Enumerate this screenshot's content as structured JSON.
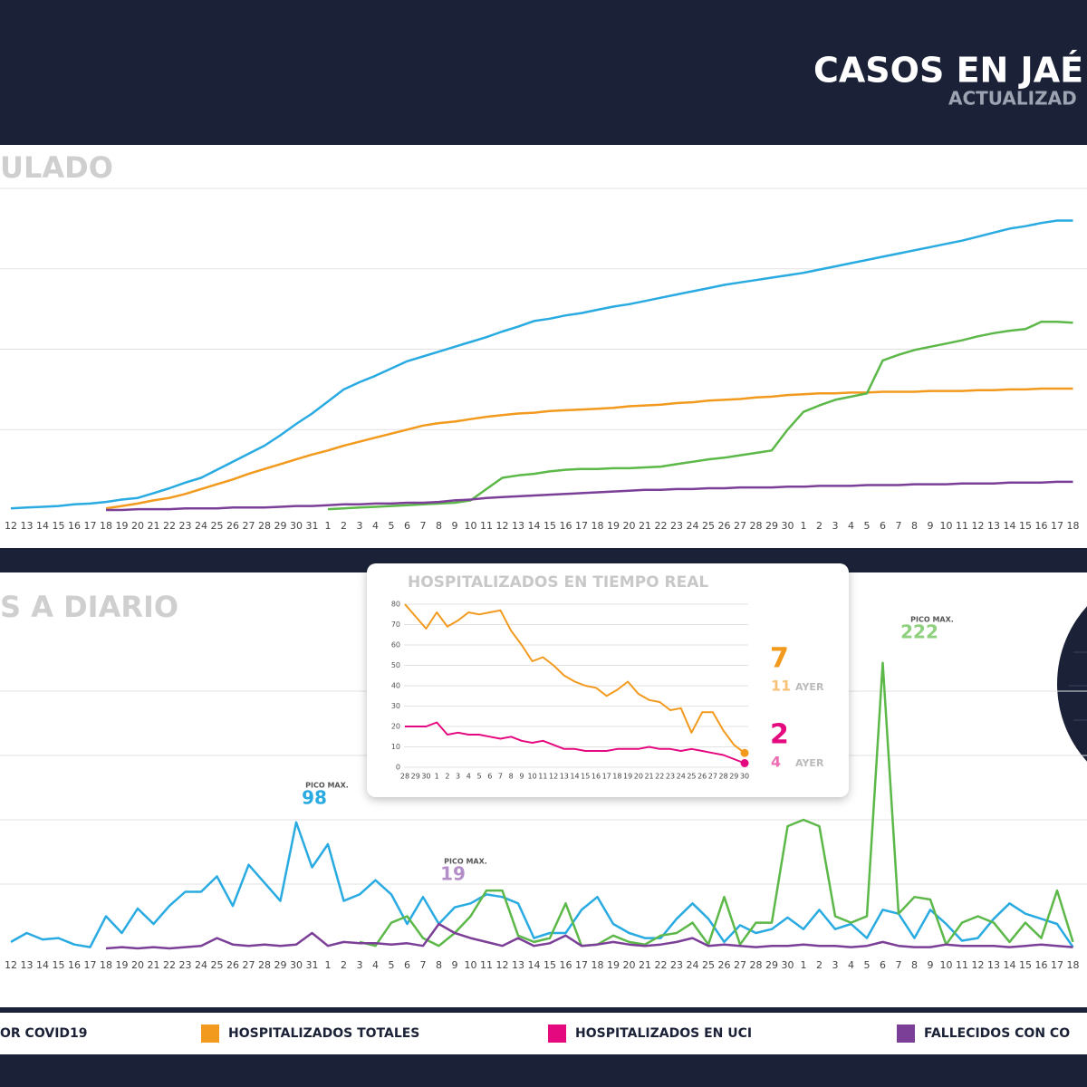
{
  "header": {
    "title": "CASOS EN JAÉ",
    "subtitle": "ACTUALIZAD"
  },
  "legend": [
    {
      "label": "OR COVID19"
    },
    {
      "label": "HOSPITALIZADOS TOTALES",
      "color": "#f29a1d"
    },
    {
      "label": "HOSPITALIZADOS EN UCI",
      "color": "#e5097f"
    },
    {
      "label": "FALLECIDOS CON CO",
      "color": "#7b3f98"
    }
  ],
  "chart_data": [
    {
      "type": "line",
      "title": "ULADO",
      "categories": [
        "12",
        "13",
        "14",
        "15",
        "16",
        "17",
        "18",
        "19",
        "20",
        "21",
        "22",
        "23",
        "24",
        "25",
        "26",
        "27",
        "28",
        "29",
        "30",
        "31",
        "1",
        "2",
        "3",
        "4",
        "5",
        "6",
        "7",
        "8",
        "9",
        "10",
        "11",
        "12",
        "13",
        "14",
        "15",
        "16",
        "17",
        "18",
        "19",
        "20",
        "21",
        "22",
        "23",
        "24",
        "25",
        "26",
        "27",
        "28",
        "29",
        "30",
        "1",
        "2",
        "3",
        "4",
        "5",
        "6",
        "7",
        "8",
        "9",
        "10",
        "11",
        "12",
        "13",
        "14",
        "15",
        "16",
        "17",
        "18"
      ],
      "ylim": [
        0,
        400
      ],
      "gridlines": [
        100,
        200,
        300,
        400
      ],
      "series": [
        {
          "color": "#29abe2",
          "values": [
            2,
            3,
            4,
            5,
            7,
            8,
            10,
            13,
            15,
            21,
            27,
            34,
            40,
            50,
            60,
            70,
            80,
            93,
            107,
            120,
            135,
            150,
            159,
            167,
            176,
            185,
            191,
            197,
            203,
            209,
            215,
            222,
            228,
            235,
            238,
            242,
            245,
            249,
            253,
            256,
            260,
            264,
            268,
            272,
            276,
            280,
            283,
            286,
            289,
            292,
            295,
            299,
            303,
            307,
            311,
            315,
            319,
            323,
            327,
            331,
            335,
            340,
            345,
            350,
            353,
            357,
            360,
            360
          ]
        },
        {
          "color": "#f29a1d",
          "values": [
            null,
            null,
            null,
            null,
            null,
            null,
            2,
            5,
            8,
            12,
            15,
            20,
            26,
            32,
            38,
            45,
            51,
            57,
            63,
            69,
            74,
            80,
            85,
            90,
            95,
            100,
            105,
            108,
            110,
            113,
            116,
            118,
            120,
            121,
            123,
            124,
            125,
            126,
            127,
            129,
            130,
            131,
            133,
            134,
            136,
            137,
            138,
            140,
            141,
            143,
            144,
            145,
            145,
            146,
            146,
            147,
            147,
            147,
            148,
            148,
            148,
            149,
            149,
            150,
            150,
            151,
            151,
            151
          ]
        },
        {
          "color": "#5cb848",
          "values": [
            null,
            null,
            null,
            null,
            null,
            null,
            null,
            null,
            null,
            null,
            null,
            null,
            null,
            null,
            null,
            null,
            null,
            null,
            null,
            null,
            1,
            2,
            3,
            4,
            5,
            6,
            7,
            8,
            9,
            12,
            26,
            40,
            43,
            45,
            48,
            50,
            51,
            51,
            52,
            52,
            53,
            54,
            57,
            60,
            63,
            65,
            68,
            71,
            74,
            100,
            122,
            130,
            137,
            141,
            145,
            186,
            193,
            199,
            203,
            207,
            211,
            216,
            220,
            223,
            225,
            234,
            234,
            233
          ]
        },
        {
          "color": "#7b3f98",
          "values": [
            null,
            null,
            null,
            null,
            null,
            null,
            0,
            0,
            1,
            1,
            1,
            2,
            2,
            2,
            3,
            3,
            3,
            4,
            5,
            5,
            6,
            7,
            7,
            8,
            8,
            9,
            9,
            10,
            12,
            13,
            15,
            16,
            17,
            18,
            19,
            20,
            21,
            22,
            23,
            24,
            25,
            25,
            26,
            26,
            27,
            27,
            28,
            28,
            28,
            29,
            29,
            30,
            30,
            30,
            31,
            31,
            31,
            32,
            32,
            32,
            33,
            33,
            33,
            34,
            34,
            34,
            35,
            35
          ]
        }
      ]
    },
    {
      "type": "line",
      "title": "S A DIARIO",
      "peak_label": "PICO MAX.",
      "categories": [
        "12",
        "13",
        "14",
        "15",
        "16",
        "17",
        "18",
        "19",
        "20",
        "21",
        "22",
        "23",
        "24",
        "25",
        "26",
        "27",
        "28",
        "29",
        "30",
        "31",
        "1",
        "2",
        "3",
        "4",
        "5",
        "6",
        "7",
        "8",
        "9",
        "10",
        "11",
        "12",
        "13",
        "14",
        "15",
        "16",
        "17",
        "18",
        "19",
        "20",
        "21",
        "22",
        "23",
        "24",
        "25",
        "26",
        "27",
        "28",
        "29",
        "30",
        "1",
        "2",
        "3",
        "4",
        "5",
        "6",
        "7",
        "8",
        "9",
        "10",
        "11",
        "12",
        "13",
        "14",
        "15",
        "16",
        "17",
        "18"
      ],
      "ylim": [
        0,
        250
      ],
      "gridlines": [
        50,
        100,
        150,
        200
      ],
      "series": [
        {
          "color": "#29abe2",
          "values": [
            5,
            12,
            7,
            8,
            3,
            1,
            25,
            12,
            31,
            19,
            33,
            44,
            44,
            56,
            33,
            65,
            51,
            37,
            98,
            63,
            81,
            37,
            42,
            53,
            42,
            19,
            40,
            19,
            32,
            35,
            42,
            40,
            35,
            8,
            12,
            12,
            30,
            40,
            19,
            12,
            8,
            8,
            23,
            35,
            23,
            5,
            18,
            12,
            15,
            24,
            15,
            30,
            15,
            19,
            8,
            30,
            27,
            8,
            30,
            19,
            6,
            8,
            23,
            35,
            27,
            23,
            19,
            1
          ]
        },
        {
          "color": "#5cb848",
          "values": [
            null,
            null,
            null,
            null,
            null,
            null,
            null,
            null,
            null,
            null,
            null,
            null,
            null,
            null,
            null,
            null,
            null,
            null,
            null,
            null,
            null,
            null,
            5,
            2,
            20,
            25,
            8,
            2,
            12,
            25,
            45,
            45,
            10,
            5,
            8,
            35,
            2,
            3,
            10,
            5,
            3,
            10,
            12,
            20,
            3,
            40,
            3,
            20,
            20,
            95,
            100,
            95,
            25,
            20,
            25,
            222,
            27,
            40,
            38,
            3,
            20,
            25,
            20,
            5,
            20,
            8,
            45,
            5
          ]
        },
        {
          "color": "#7b3f98",
          "values": [
            null,
            null,
            null,
            null,
            null,
            null,
            0,
            1,
            0,
            1,
            0,
            1,
            2,
            8,
            3,
            2,
            3,
            2,
            3,
            12,
            2,
            5,
            4,
            4,
            3,
            4,
            2,
            19,
            12,
            8,
            5,
            2,
            8,
            2,
            4,
            10,
            2,
            3,
            5,
            3,
            2,
            3,
            5,
            8,
            2,
            3,
            2,
            1,
            2,
            2,
            3,
            2,
            2,
            1,
            2,
            5,
            2,
            1,
            1,
            3,
            2,
            2,
            2,
            1,
            2,
            3,
            2,
            1
          ]
        }
      ]
    },
    {
      "type": "line",
      "title": "HOSPITALIZADOS EN TIEMPO REAL",
      "yesterday_label": "AYER",
      "categories": [
        "28",
        "29",
        "30",
        "1",
        "2",
        "3",
        "4",
        "5",
        "6",
        "7",
        "8",
        "9",
        "10",
        "11",
        "12",
        "13",
        "14",
        "15",
        "16",
        "17",
        "18",
        "19",
        "20",
        "21",
        "22",
        "23",
        "24",
        "25",
        "26",
        "27",
        "28",
        "29",
        "30"
      ],
      "ylim": [
        0,
        80
      ],
      "yticks": [
        0,
        10,
        20,
        30,
        40,
        50,
        60,
        70,
        80
      ],
      "grid": true,
      "series": [
        {
          "color": "#f29a1d",
          "values": [
            80,
            74,
            68,
            76,
            69,
            72,
            76,
            75,
            76,
            77,
            67,
            60,
            52,
            54,
            50,
            45,
            42,
            40,
            39,
            35,
            38,
            42,
            36,
            33,
            32,
            28,
            29,
            17,
            27,
            27,
            18,
            11,
            7
          ]
        },
        {
          "color": "#e5097f",
          "values": [
            20,
            20,
            20,
            22,
            16,
            17,
            16,
            16,
            15,
            14,
            15,
            13,
            12,
            13,
            11,
            9,
            9,
            8,
            8,
            8,
            9,
            9,
            9,
            10,
            9,
            9,
            8,
            9,
            8,
            7,
            6,
            4,
            2
          ]
        }
      ]
    }
  ]
}
